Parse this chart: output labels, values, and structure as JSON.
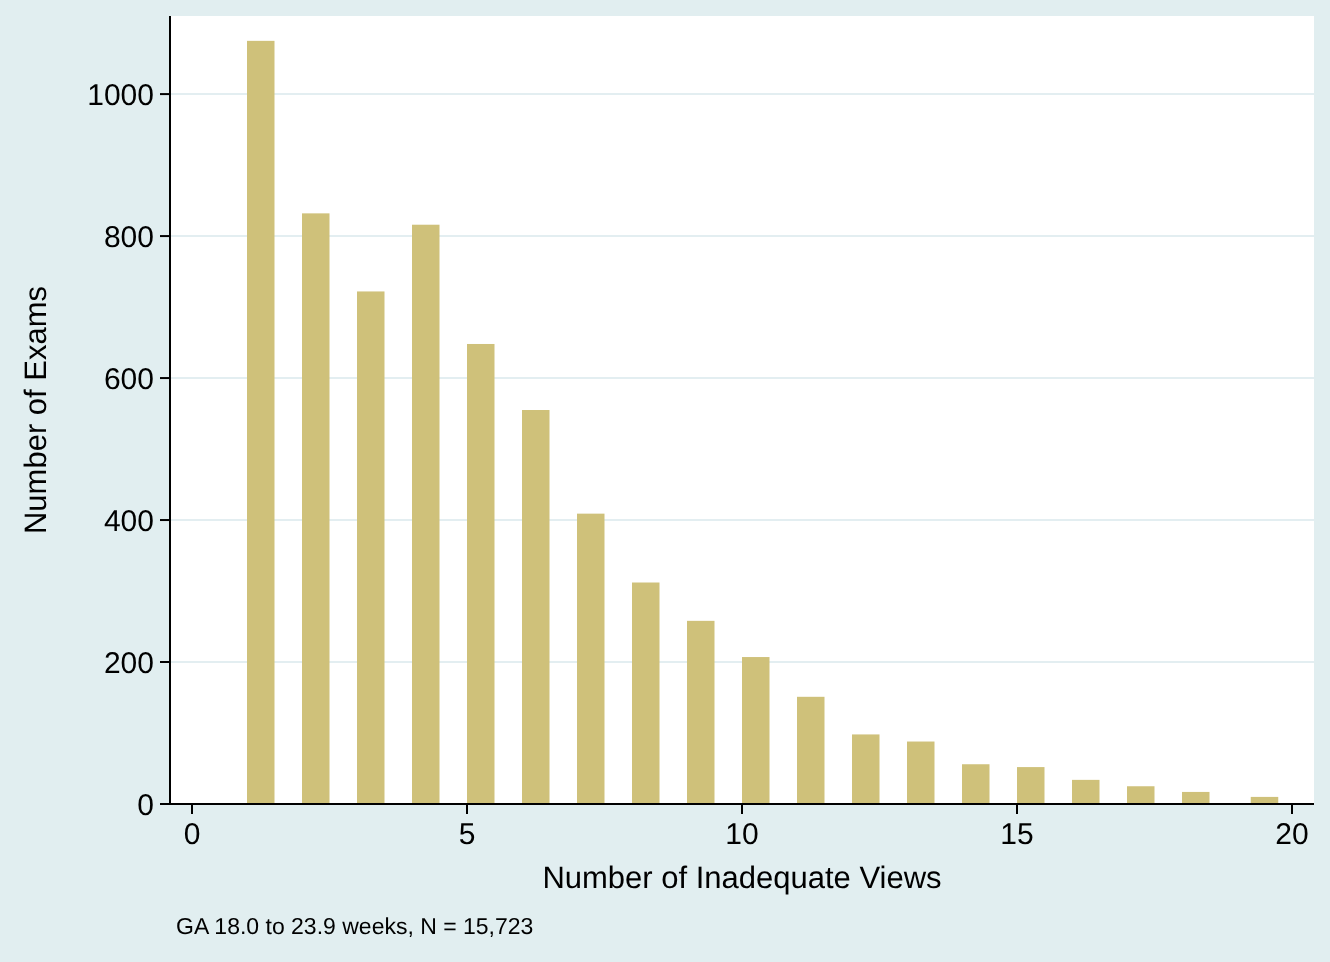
{
  "chart_data": {
    "type": "bar",
    "xlabel": "Number of Inadequate Views",
    "ylabel": "Number of Exams",
    "annotations": [
      "GA 18.0 to 23.9 weeks, N = 15,723"
    ],
    "x": [
      1.25,
      2.25,
      3.25,
      4.25,
      5.25,
      6.25,
      7.25,
      8.25,
      9.25,
      10.25,
      11.25,
      12.25,
      13.25,
      14.25,
      15.25,
      16.25,
      17.25,
      18.25,
      19.5
    ],
    "values": [
      1075,
      832,
      722,
      816,
      648,
      555,
      409,
      312,
      258,
      207,
      151,
      98,
      88,
      56,
      52,
      34,
      25,
      17,
      10
    ],
    "color": "#cfc17a",
    "xlim": [
      -0.4,
      20.4
    ],
    "xticks": [
      0,
      5,
      10,
      15,
      20
    ],
    "ylim": [
      0,
      1110
    ],
    "yticks": [
      0,
      200,
      400,
      600,
      800,
      1000
    ],
    "grid": "y"
  }
}
